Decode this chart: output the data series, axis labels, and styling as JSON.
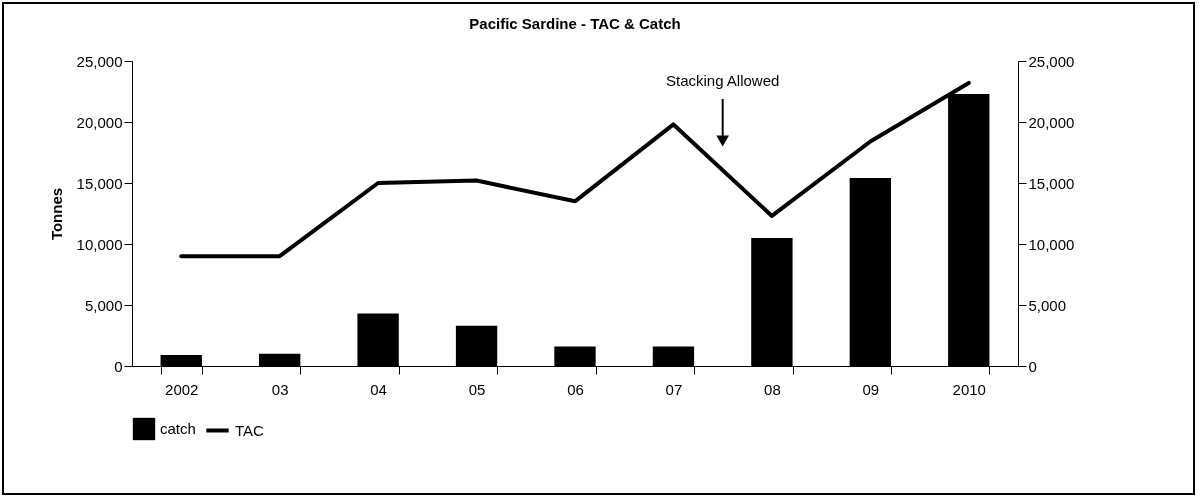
{
  "chart_data": {
    "type": "bar",
    "title": "Pacific Sardine - TAC & Catch",
    "ylabel": "Tonnes",
    "categories": [
      "2002",
      "03",
      "04",
      "05",
      "06",
      "07",
      "08",
      "09",
      "2010"
    ],
    "series": [
      {
        "name": "catch",
        "color": "#000000",
        "values": [
          900,
          1000,
          4300,
          3300,
          1600,
          1600,
          10500,
          15400,
          22300
        ]
      },
      {
        "name": "TAC",
        "type": "line",
        "color": "#000000",
        "values": [
          9000,
          9000,
          15000,
          15200,
          13500,
          19800,
          12300,
          18400,
          23200
        ]
      }
    ],
    "ylim": [
      0,
      25000
    ],
    "yticks": [
      0,
      {
        "value": 5000,
        "label": "5,000"
      },
      {
        "value": 10000,
        "label": "10,000"
      },
      {
        "value": 15000,
        "label": "15,000"
      },
      {
        "value": 20000,
        "label": "20,000"
      },
      {
        "value": 25000,
        "label": "25,000"
      }
    ],
    "y2lim": [
      0,
      25000
    ],
    "y2ticks": [
      0,
      {
        "value": 5000,
        "label": "5,000"
      },
      {
        "value": 10000,
        "label": "10,000"
      },
      {
        "value": 15000,
        "label": "15,000"
      },
      {
        "value": 20000,
        "label": "20,000"
      },
      {
        "value": 25000,
        "label": "25,000"
      }
    ],
    "annotations": [
      "Stacking Allowed"
    ],
    "legend": "bottom",
    "grid": false
  }
}
